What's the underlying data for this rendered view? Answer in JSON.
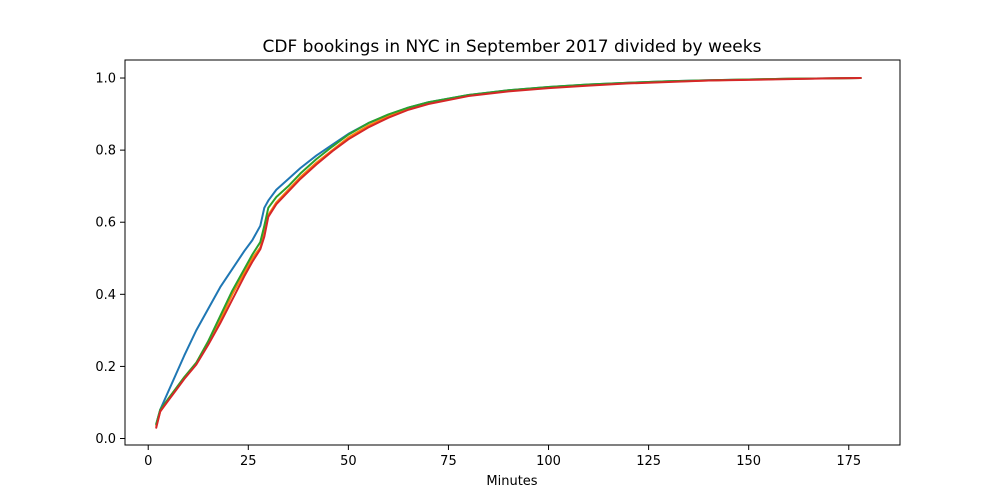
{
  "chart_data": {
    "type": "line",
    "title": "CDF bookings in NYC in September 2017 divided by weeks",
    "xlabel": "Minutes",
    "ylabel": "",
    "xlim": [
      -5.8,
      187.8
    ],
    "ylim": [
      -0.018,
      1.05
    ],
    "xticks": [
      0,
      25,
      50,
      75,
      100,
      125,
      150,
      175
    ],
    "yticks": [
      0.0,
      0.2,
      0.4,
      0.6,
      0.8,
      1.0
    ],
    "ytick_labels": [
      "0.0",
      "0.2",
      "0.4",
      "0.6",
      "0.8",
      "1.0"
    ],
    "grid": false,
    "series": [
      {
        "color": "#1f77b4",
        "x": [
          2,
          3,
          5,
          7,
          9,
          12,
          15,
          18,
          21,
          24,
          26,
          28,
          29,
          30,
          32,
          35,
          38,
          42,
          46,
          50,
          55,
          60,
          65,
          70,
          80,
          90,
          100,
          110,
          120,
          130,
          140,
          150,
          160,
          170,
          178
        ],
        "y": [
          0.04,
          0.08,
          0.13,
          0.18,
          0.23,
          0.3,
          0.36,
          0.42,
          0.47,
          0.52,
          0.55,
          0.59,
          0.64,
          0.66,
          0.69,
          0.72,
          0.75,
          0.785,
          0.815,
          0.845,
          0.875,
          0.898,
          0.918,
          0.933,
          0.953,
          0.966,
          0.975,
          0.982,
          0.987,
          0.991,
          0.994,
          0.996,
          0.998,
          0.999,
          1.0
        ]
      },
      {
        "color": "#ff7f0e",
        "x": [
          2,
          3,
          5,
          7,
          9,
          12,
          15,
          18,
          21,
          24,
          26,
          28,
          29,
          30,
          32,
          35,
          38,
          42,
          46,
          50,
          55,
          60,
          65,
          70,
          80,
          90,
          100,
          110,
          120,
          130,
          140,
          150,
          160,
          170,
          178
        ],
        "y": [
          0.035,
          0.075,
          0.11,
          0.14,
          0.17,
          0.21,
          0.27,
          0.33,
          0.4,
          0.46,
          0.5,
          0.53,
          0.57,
          0.62,
          0.655,
          0.69,
          0.725,
          0.765,
          0.8,
          0.835,
          0.868,
          0.894,
          0.915,
          0.93,
          0.951,
          0.965,
          0.974,
          0.981,
          0.986,
          0.99,
          0.993,
          0.996,
          0.998,
          0.999,
          1.0
        ]
      },
      {
        "color": "#2ca02c",
        "x": [
          2,
          3,
          5,
          7,
          9,
          12,
          15,
          18,
          21,
          24,
          26,
          28,
          29,
          30,
          32,
          35,
          38,
          42,
          46,
          50,
          55,
          60,
          65,
          70,
          80,
          90,
          100,
          110,
          120,
          130,
          140,
          150,
          160,
          170,
          178
        ],
        "y": [
          0.04,
          0.08,
          0.11,
          0.14,
          0.17,
          0.21,
          0.27,
          0.34,
          0.41,
          0.47,
          0.51,
          0.545,
          0.59,
          0.64,
          0.67,
          0.7,
          0.735,
          0.775,
          0.81,
          0.843,
          0.875,
          0.899,
          0.918,
          0.933,
          0.953,
          0.966,
          0.975,
          0.982,
          0.987,
          0.991,
          0.994,
          0.996,
          0.998,
          0.999,
          1.0
        ]
      },
      {
        "color": "#d62728",
        "x": [
          2,
          3,
          5,
          7,
          9,
          12,
          15,
          18,
          21,
          24,
          26,
          28,
          29,
          30,
          32,
          35,
          38,
          42,
          46,
          50,
          55,
          60,
          65,
          70,
          80,
          90,
          100,
          110,
          120,
          130,
          140,
          150,
          160,
          170,
          178
        ],
        "y": [
          0.03,
          0.075,
          0.105,
          0.135,
          0.165,
          0.205,
          0.26,
          0.32,
          0.385,
          0.45,
          0.49,
          0.525,
          0.56,
          0.615,
          0.65,
          0.685,
          0.72,
          0.76,
          0.797,
          0.83,
          0.863,
          0.89,
          0.912,
          0.928,
          0.95,
          0.963,
          0.972,
          0.979,
          0.985,
          0.989,
          0.993,
          0.995,
          0.997,
          0.999,
          1.0
        ]
      }
    ]
  }
}
